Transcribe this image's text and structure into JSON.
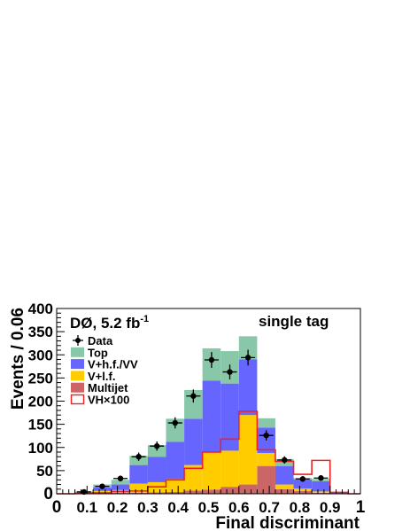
{
  "chart_data": {
    "type": "bar",
    "stacked": true,
    "title": "",
    "experiment_label": "DØ, 5.2 fb",
    "experiment_label_sup": "-1",
    "channel_label": "single tag",
    "xlabel": "Final discriminant",
    "ylabel": "Events / 0.06",
    "xlim": [
      0,
      1
    ],
    "ylim": [
      0,
      400
    ],
    "x_ticks": [
      "0",
      "0.1",
      "0.2",
      "0.3",
      "0.4",
      "0.5",
      "0.6",
      "0.7",
      "0.8",
      "0.9",
      "1"
    ],
    "y_ticks": [
      "0",
      "50",
      "100",
      "150",
      "200",
      "250",
      "300",
      "350",
      "400"
    ],
    "bin_edges": [
      0,
      0.06,
      0.12,
      0.18,
      0.24,
      0.3,
      0.36,
      0.42,
      0.48,
      0.54,
      0.6,
      0.66,
      0.72,
      0.78,
      0.84,
      0.9,
      0.96,
      1.0
    ],
    "stack_series": [
      {
        "name": "Multijet",
        "color": "#cc6666",
        "values": [
          0,
          0,
          1,
          2,
          2,
          3,
          4,
          7,
          9,
          15,
          20,
          60,
          10,
          6,
          2,
          1,
          0
        ]
      },
      {
        "name": "V+l.f.",
        "color": "#ffcc00",
        "values": [
          0,
          1,
          5,
          6,
          20,
          22,
          28,
          55,
          80,
          78,
          150,
          28,
          10,
          5,
          3,
          0,
          0
        ]
      },
      {
        "name": "V+h.f./VV",
        "color": "#6666ff",
        "values": [
          0,
          2,
          8,
          12,
          40,
          55,
          80,
          100,
          155,
          145,
          120,
          55,
          40,
          20,
          22,
          1,
          0
        ]
      },
      {
        "name": "Top",
        "color": "#88c8a8",
        "values": [
          0,
          2,
          6,
          10,
          20,
          25,
          50,
          62,
          70,
          70,
          50,
          20,
          15,
          3,
          5,
          0,
          0
        ]
      }
    ],
    "signal": {
      "name": "VH×100",
      "color": "#ee2222",
      "values": [
        0,
        1,
        2,
        5,
        6,
        15,
        30,
        55,
        90,
        118,
        178,
        95,
        70,
        42,
        72,
        3,
        0
      ]
    },
    "data": {
      "name": "Data",
      "x": [
        0.09,
        0.15,
        0.21,
        0.27,
        0.33,
        0.39,
        0.45,
        0.51,
        0.57,
        0.63,
        0.69,
        0.75,
        0.81,
        0.87
      ],
      "y": [
        4,
        16,
        33,
        80,
        103,
        153,
        211,
        289,
        263,
        294,
        126,
        73,
        32,
        34
      ],
      "err": [
        2,
        4,
        6,
        9,
        10,
        12,
        14,
        17,
        16,
        17,
        11,
        8,
        6,
        6
      ]
    },
    "legend_position": "top-left",
    "grid": false
  }
}
